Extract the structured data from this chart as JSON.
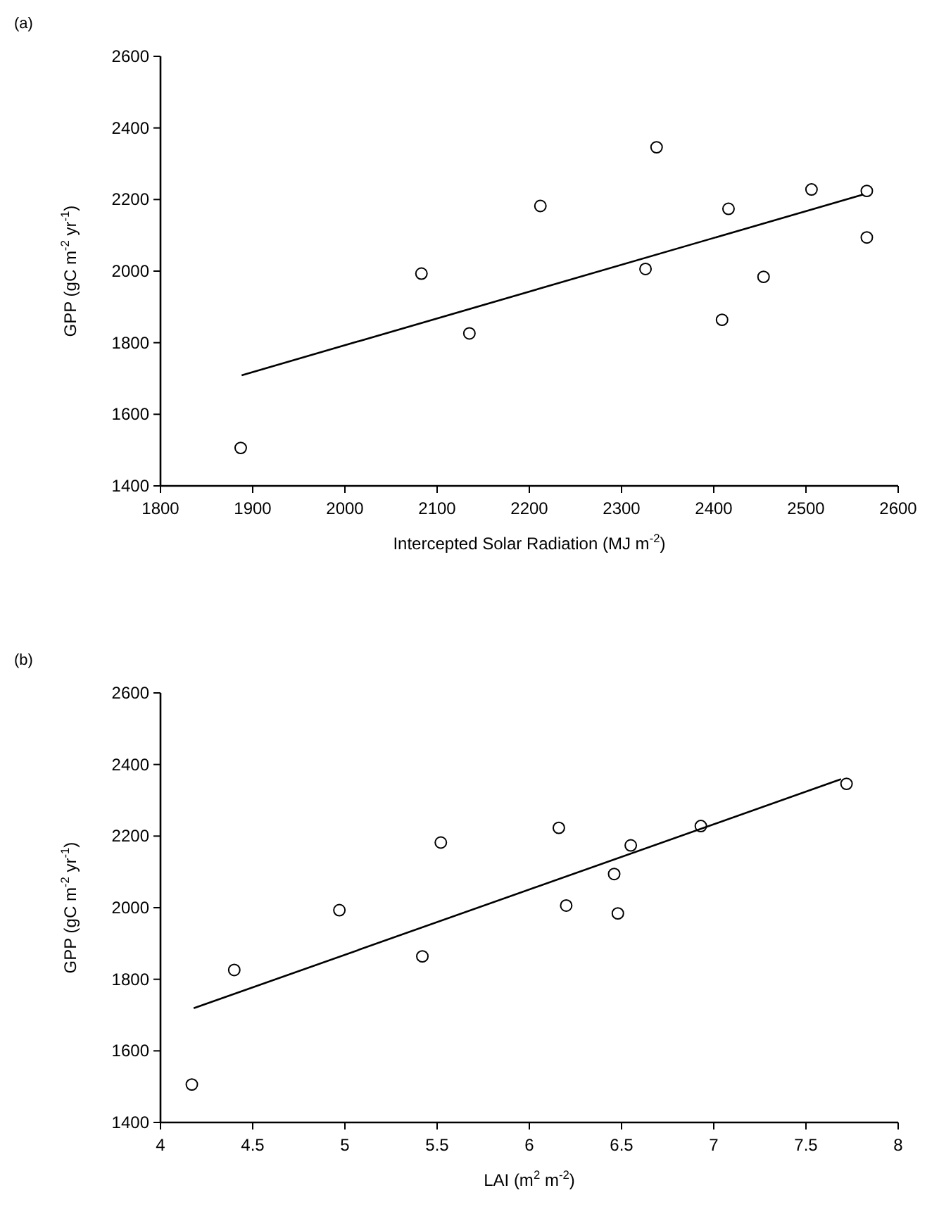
{
  "chart_data": [
    {
      "type": "scatter",
      "title": "(a)",
      "xlabel": "Intercepted Solar Radiation (MJ m$^{-2}$)",
      "ylabel": "GPP (gC m$^{-2}$ yr$^{-1}$)",
      "xlim": [
        1800,
        2600
      ],
      "xticks": [
        1800,
        1900,
        2000,
        2100,
        2200,
        2300,
        2400,
        2500,
        2600
      ],
      "ylim": [
        1400,
        2600
      ],
      "yticks": [
        1400,
        1600,
        1800,
        2000,
        2200,
        2400,
        2600
      ],
      "grid": false,
      "series": [
        {
          "marker": "circle",
          "color": "#000000",
          "x": [
            1887,
            2083,
            2135,
            2212,
            2326,
            2338,
            2409,
            2416,
            2454,
            2506,
            2566,
            2566
          ],
          "values": [
            1506,
            1993,
            1826,
            2182,
            2006,
            2346,
            1864,
            2174,
            1984,
            2228,
            2224,
            2094
          ]
        },
        {
          "type": "line",
          "marker": "none",
          "line_style": "solid",
          "color": "#000000",
          "x": [
            1888,
            2562
          ],
          "values": [
            1709,
            2214
          ]
        }
      ]
    },
    {
      "type": "scatter",
      "title": "(b)",
      "xlabel": "LAI (m$^{2}$ m$^{-2}$)",
      "ylabel": "GPP (gC m$^{-2}$ yr$^{-1}$)",
      "xlim": [
        4,
        8
      ],
      "xticks": [
        4,
        4.5,
        5,
        5.5,
        6,
        6.5,
        7,
        7.5,
        8
      ],
      "ylim": [
        1400,
        2600
      ],
      "yticks": [
        1400,
        1600,
        1800,
        2000,
        2200,
        2400,
        2600
      ],
      "grid": false,
      "series": [
        {
          "marker": "circle",
          "color": "#000000",
          "x": [
            4.17,
            4.4,
            4.97,
            5.42,
            5.52,
            6.16,
            6.2,
            6.46,
            6.48,
            6.55,
            6.93,
            7.72
          ],
          "values": [
            1506,
            1826,
            1993,
            1864,
            2182,
            2223,
            2006,
            2094,
            1984,
            2174,
            2228,
            2346
          ]
        },
        {
          "type": "line",
          "marker": "none",
          "line_style": "solid",
          "color": "#000000",
          "x": [
            4.18,
            7.69
          ],
          "values": [
            1719,
            2359
          ]
        }
      ]
    }
  ]
}
